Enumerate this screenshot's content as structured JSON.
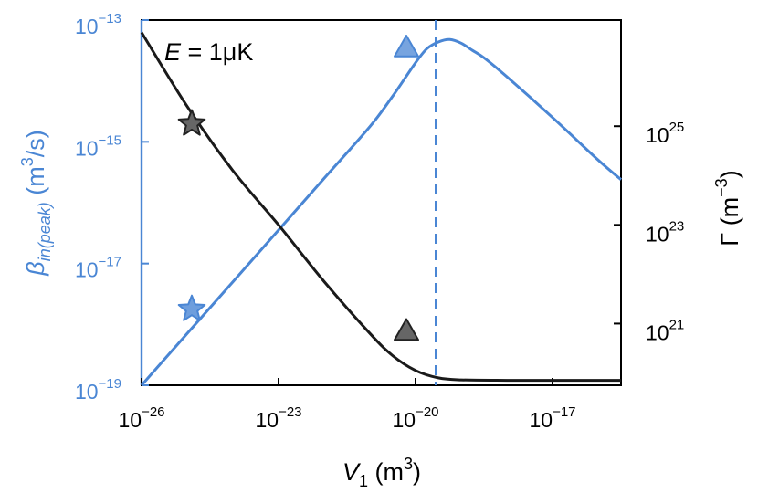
{
  "chart_data": {
    "type": "line",
    "annotation": {
      "symbol": "E",
      "equals": " = 1μK"
    },
    "colors": {
      "blue": "#4a86d4",
      "black": "#1a1a1a",
      "star_gray": "#666666"
    },
    "x_axis": {
      "label_symbol": "V",
      "label_subscript": "1",
      "label_unit_open": " (m",
      "label_unit_exp": "3",
      "label_unit_close": ")",
      "scale": "log",
      "range_log10": [
        -26,
        -15.5
      ],
      "ticks": [
        {
          "base": "10",
          "exp": "−26",
          "log10": -26
        },
        {
          "base": "10",
          "exp": "−23",
          "log10": -23
        },
        {
          "base": "10",
          "exp": "−20",
          "log10": -20
        },
        {
          "base": "10",
          "exp": "−17",
          "log10": -17
        }
      ]
    },
    "y_left": {
      "label_symbol": "β",
      "label_subscript": "in(peak)",
      "label_unit_open": " (m",
      "label_unit_exp": "3",
      "label_unit_close": "/s)",
      "scale": "log",
      "range_log10": [
        -19,
        -13
      ],
      "ticks": [
        {
          "base": "10",
          "exp": "−13",
          "log10": -13
        },
        {
          "base": "10",
          "exp": "−15",
          "log10": -15
        },
        {
          "base": "10",
          "exp": "−17",
          "log10": -17
        },
        {
          "base": "10",
          "exp": "−19",
          "log10": -19
        }
      ]
    },
    "y_right": {
      "label_symbol": "Γ",
      "label_unit_open": " (m",
      "label_unit_exp": "−3",
      "label_unit_close": ")",
      "scale": "log",
      "range_log10": [
        19.75,
        27.15
      ],
      "ticks": [
        {
          "base": "10",
          "exp": "25",
          "log10": 25
        },
        {
          "base": "10",
          "exp": "23",
          "log10": 23
        },
        {
          "base": "10",
          "exp": "21",
          "log10": 21
        }
      ]
    },
    "series": [
      {
        "axis": "left",
        "color": "blue",
        "points_log10": [
          [
            -26,
            -19.0
          ],
          [
            -25,
            -18.15
          ],
          [
            -24,
            -17.3
          ],
          [
            -23,
            -16.45
          ],
          [
            -22,
            -15.6
          ],
          [
            -21,
            -14.75
          ],
          [
            -20.5,
            -14.25
          ],
          [
            -20,
            -13.7
          ],
          [
            -19.75,
            -13.47
          ],
          [
            -19.5,
            -13.36
          ],
          [
            -19.25,
            -13.32
          ],
          [
            -19.0,
            -13.38
          ],
          [
            -18.75,
            -13.5
          ],
          [
            -18.5,
            -13.62
          ],
          [
            -18,
            -13.93
          ],
          [
            -17,
            -14.6
          ],
          [
            -16,
            -15.3
          ],
          [
            -15.5,
            -15.62
          ]
        ]
      },
      {
        "axis": "right",
        "color": "black",
        "points_log10": [
          [
            -26,
            26.9
          ],
          [
            -25,
            25.4
          ],
          [
            -24,
            24.1
          ],
          [
            -23,
            23.0
          ],
          [
            -22,
            21.85
          ],
          [
            -21,
            20.8
          ],
          [
            -20.5,
            20.35
          ],
          [
            -20,
            20.05
          ],
          [
            -19.5,
            19.9
          ],
          [
            -19,
            19.86
          ],
          [
            -18,
            19.85
          ],
          [
            -17,
            19.85
          ],
          [
            -15.5,
            19.85
          ]
        ]
      }
    ],
    "vertical_line": {
      "x_log10": -19.55,
      "color": "blue",
      "style": "dashed"
    },
    "markers": [
      {
        "shape": "star",
        "series": "left",
        "x_log10": -24.9,
        "y_log10": -17.75,
        "color": "blue"
      },
      {
        "shape": "triangle",
        "series": "left",
        "x_log10": -20.2,
        "y_log10": -13.45,
        "color": "blue"
      },
      {
        "shape": "star",
        "series": "right",
        "x_log10": -24.9,
        "y_log10": 25.05,
        "color": "star_gray"
      },
      {
        "shape": "triangle",
        "series": "right",
        "x_log10": -20.2,
        "y_log10": 20.85,
        "color": "star_gray"
      }
    ],
    "grid": false,
    "legend": "none"
  }
}
